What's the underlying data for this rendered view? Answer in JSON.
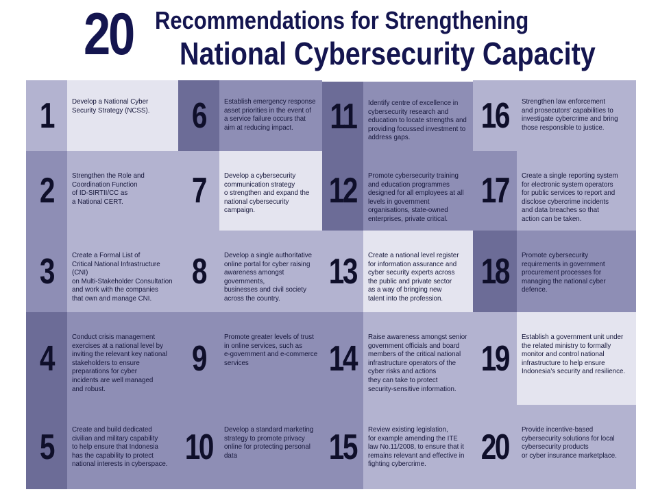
{
  "title": {
    "number": "20",
    "line1": "Recommendations for Strengthening",
    "line2": "National Cybersecurity Capacity"
  },
  "colors": {
    "title": "#14154f",
    "shade_dark": "#6c6c97",
    "shade_mid": "#8e8eb5",
    "shade_light": "#b3b3d0",
    "shade_pale": "#e4e4ef"
  },
  "recommendations": [
    {
      "number": "1",
      "text": "Develop a National Cyber\nSecurity Strategy (NCSS)."
    },
    {
      "number": "2",
      "text": "Strengthen the Role and\nCoordination Function\nof ID-SIRTII/CC as\na  National CERT."
    },
    {
      "number": "3",
      "text": "Create a Formal List of\nCritical National Infrastructure (CNI)\non Multi-Stakeholder Consultation\nand work with the companies\nthat own and manage CNI."
    },
    {
      "number": "4",
      "text": "Conduct crisis management\nexercises at a national level by\ninviting the relevant key national\nstakeholders to ensure\npreparations for cyber\nincidents are well managed\nand robust."
    },
    {
      "number": "5",
      "text": "Create and build dedicated\ncivilian and military capability\nto help ensure that Indonesia\nhas the capability to protect\nnational interests in cyberspace."
    },
    {
      "number": "6",
      "text": "Establish emergency response\nasset priorities in the event of\na service failure occurs that\naim at reducing impact."
    },
    {
      "number": "7",
      "text": "Develop  a cybersecurity\ncommunication strategy\no strengthen and expand the\nnational cybersecurity campaign."
    },
    {
      "number": "8",
      "text": "Develop a single authoritative\nonline portal for cyber raising\nawareness amongst governments,\nbusinesses and civil society\nacross the country."
    },
    {
      "number": "9",
      "text": "Promote greater levels of trust\nin online services, such as\ne-government and e-commerce\nservices"
    },
    {
      "number": "10",
      "text": "Develop a  standard marketing\nstrategy to promote privacy\nonline for protecting personal data"
    },
    {
      "number": "11",
      "text": "Identify centre of excellence in\ncybersecurity research and\neducation to locate strengths and\nproviding focussed investment to\naddress gaps."
    },
    {
      "number": "12",
      "text": "Promote cybersecurity training\nand education programmes\ndesigned for all employees at all\nlevels in government\norganisations, state-owned\nenterprises, private critical."
    },
    {
      "number": "13",
      "text": "Create a national level register\nfor information assurance and\ncyber security experts across\nthe public and private sector\nas a way of bringing new\ntalent into the profession."
    },
    {
      "number": "14",
      "text": " Raise awareness amongst senior\ngovernment officials and board\nmembers of the critical national\ninfrastructure operators of the\ncyber risks and actions\nthey can take to protect\nsecurity-sensitive information."
    },
    {
      "number": "15",
      "text": "Review existing legislation,\nfor example amending the ITE\nlaw No.11/2008, to ensure that it\nremains relevant and effective in\nfighting cybercrime."
    },
    {
      "number": "16",
      "text": "Strengthen law enforcement\nand prosecutors' capabilities to\ninvestigate cybercrime and bring\nthose responsible to justice."
    },
    {
      "number": "17",
      "text": "Create a single reporting system\nfor electronic system operators\nfor public services to report and\ndisclose cybercrime incidents\nand data breaches so that\naction can be taken."
    },
    {
      "number": "18",
      "text": "Promote cybersecurity\nrequirements in government\nprocurement processes for\nmanaging the national cyber\ndefence."
    },
    {
      "number": "19",
      "text": "Establish a government unit under\nthe related ministry to formally\nmonitor and control national\ninfrastructure to help ensure\nIndonesia's security and resilience."
    },
    {
      "number": "20",
      "text": "Provide incentive-based\ncybersecurity solutions for local\ncybersecurity products\nor cyber insurance marketplace."
    }
  ]
}
